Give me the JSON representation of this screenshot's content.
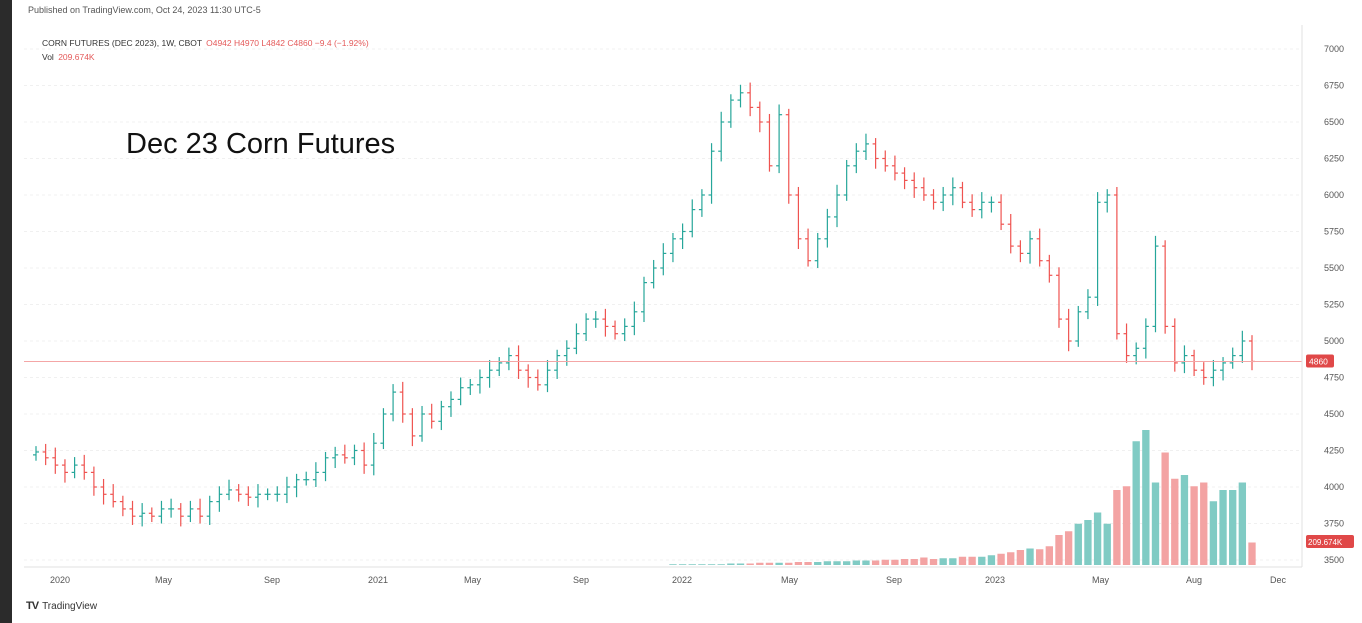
{
  "header": {
    "published": "Published on TradingView.com, Oct 24, 2023 11:30 UTC-5",
    "symbol": "CORN FUTURES (DEC 2023), 1W, CBOT",
    "ohlc": "O4942  H4970  L4842  C4860  −9.4 (−1.92%)",
    "vol_label": "Vol",
    "vol_value": "209.674K"
  },
  "overlay_title": "Dec 23 Corn Futures",
  "footer": {
    "logo": "TV",
    "brand": "TradingView"
  },
  "colors": {
    "up": "#26a69a",
    "down": "#ef5350",
    "vol_up": "#80cbc4",
    "vol_down": "#f3a3a3",
    "price_line": "#f4a6a6",
    "badge": "#e04848"
  },
  "chart_data": {
    "type": "ohlc",
    "interval": "1W",
    "y_axis_labels": [
      "7000",
      "6750",
      "6500",
      "6250",
      "6000",
      "5750",
      "5500",
      "5250",
      "5000",
      "4750",
      "4500",
      "4250",
      "4000",
      "3750",
      "3500"
    ],
    "ylim": [
      3400,
      7100
    ],
    "x_tick_labels": [
      "2020",
      "May",
      "Sep",
      "2021",
      "May",
      "Sep",
      "2022",
      "May",
      "Sep",
      "2023",
      "May",
      "Aug",
      "Dec"
    ],
    "last_price": "4860",
    "volume_last": "209.674K",
    "close_series": [
      4240,
      4200,
      4150,
      4100,
      4150,
      4100,
      4000,
      3950,
      3900,
      3850,
      3800,
      3820,
      3800,
      3850,
      3850,
      3800,
      3850,
      3800,
      3900,
      3950,
      3980,
      3950,
      3930,
      3950,
      3950,
      3950,
      4000,
      4050,
      4050,
      4100,
      4200,
      4220,
      4200,
      4250,
      4150,
      4300,
      4500,
      4650,
      4500,
      4350,
      4500,
      4450,
      4550,
      4600,
      4680,
      4700,
      4750,
      4800,
      4850,
      4900,
      4800,
      4750,
      4700,
      4800,
      4900,
      4950,
      5050,
      5150,
      5150,
      5100,
      5050,
      5100,
      5200,
      5400,
      5500,
      5600,
      5700,
      5750,
      5900,
      6000,
      6300,
      6500,
      6650,
      6700,
      6600,
      6500,
      6200,
      6550,
      6000,
      5700,
      5550,
      5700,
      5850,
      6000,
      6200,
      6300,
      6350,
      6250,
      6200,
      6150,
      6100,
      6050,
      6000,
      5950,
      6000,
      6050,
      5950,
      5900,
      5950,
      5950,
      5800,
      5650,
      5600,
      5700,
      5550,
      5450,
      5150,
      5000,
      5200,
      5300,
      5950,
      6000,
      5050,
      4900,
      4950,
      5100,
      5650,
      5100,
      4850,
      4900,
      4800,
      4750,
      4800,
      4850,
      4900,
      5000,
      4860
    ],
    "volume_series": [
      0,
      0,
      0,
      0,
      0,
      0,
      0,
      0,
      0,
      0,
      0,
      0,
      0,
      0,
      0,
      0,
      0,
      0,
      0,
      0,
      0,
      0,
      0,
      0,
      0,
      0,
      0,
      0,
      0,
      0,
      0,
      0,
      0,
      0,
      0,
      0,
      0,
      0,
      0,
      0,
      0,
      0,
      0,
      0,
      0,
      0,
      0,
      0,
      0,
      0,
      0,
      0,
      0,
      0,
      0,
      0,
      0,
      0,
      0,
      0,
      0,
      0,
      0,
      0,
      0,
      0,
      1,
      1,
      1,
      1,
      1,
      1,
      2,
      2,
      2,
      3,
      3,
      3,
      3,
      4,
      4,
      4,
      5,
      5,
      5,
      6,
      6,
      6,
      7,
      7,
      8,
      8,
      10,
      8,
      9,
      9,
      11,
      11,
      11,
      13,
      15,
      17,
      20,
      22,
      21,
      25,
      40,
      45,
      55,
      60,
      70,
      55,
      100,
      105,
      165,
      180,
      110,
      150,
      115,
      120,
      105,
      110,
      85,
      100,
      100,
      110,
      30
    ]
  }
}
